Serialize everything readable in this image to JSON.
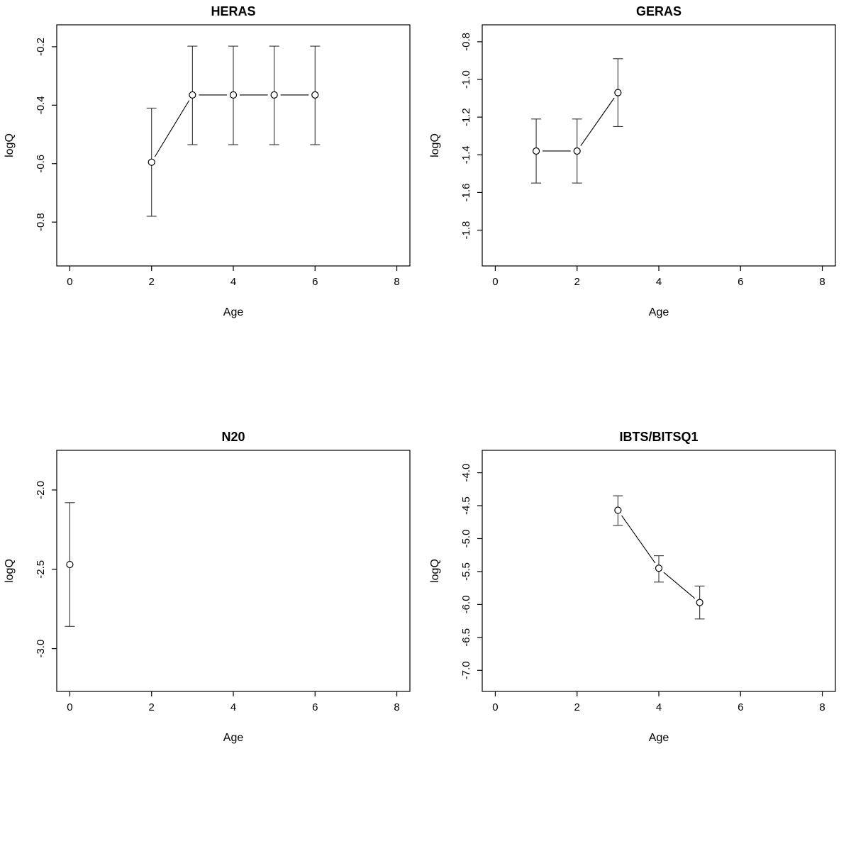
{
  "page": {
    "background": "#ffffff",
    "axis_color": "#000000",
    "point_color": "#000000",
    "errorbar_color": "#333333"
  },
  "chart_data": [
    {
      "type": "scatter",
      "title": "HERAS",
      "xlabel": "Age",
      "ylabel": "logQ",
      "xlim": [
        -0.32,
        8.32
      ],
      "ylim": [
        -0.95,
        -0.125
      ],
      "xticks": [
        0,
        2,
        4,
        6,
        8
      ],
      "xtick_labels": [
        "0",
        "2",
        "4",
        "6",
        "8"
      ],
      "yticks": [
        -0.8,
        -0.6,
        -0.4,
        -0.2
      ],
      "ytick_labels": [
        "-0.8",
        "-0.6",
        "-0.4",
        "-0.2"
      ],
      "connect": true,
      "points": [
        {
          "x": 2,
          "y": -0.595,
          "lo": -0.78,
          "hi": -0.41
        },
        {
          "x": 3,
          "y": -0.365,
          "lo": -0.535,
          "hi": -0.198
        },
        {
          "x": 4,
          "y": -0.365,
          "lo": -0.535,
          "hi": -0.198
        },
        {
          "x": 5,
          "y": -0.365,
          "lo": -0.535,
          "hi": -0.198
        },
        {
          "x": 6,
          "y": -0.365,
          "lo": -0.535,
          "hi": -0.198
        }
      ]
    },
    {
      "type": "scatter",
      "title": "GERAS",
      "xlabel": "Age",
      "ylabel": "logQ",
      "xlim": [
        -0.32,
        8.32
      ],
      "ylim": [
        -1.99,
        -0.71
      ],
      "xticks": [
        0,
        2,
        4,
        6,
        8
      ],
      "xtick_labels": [
        "0",
        "2",
        "4",
        "6",
        "8"
      ],
      "yticks": [
        -1.8,
        -1.6,
        -1.4,
        -1.2,
        -1.0,
        -0.8
      ],
      "ytick_labels": [
        "-1.8",
        "-1.6",
        "-1.4",
        "-1.2",
        "-1.0",
        "-0.8"
      ],
      "connect": true,
      "points": [
        {
          "x": 1,
          "y": -1.38,
          "lo": -1.55,
          "hi": -1.21
        },
        {
          "x": 2,
          "y": -1.38,
          "lo": -1.55,
          "hi": -1.21
        },
        {
          "x": 3,
          "y": -1.07,
          "lo": -1.25,
          "hi": -0.89
        }
      ]
    },
    {
      "type": "scatter",
      "title": "N20",
      "xlabel": "Age",
      "ylabel": "logQ",
      "xlim": [
        -0.32,
        8.32
      ],
      "ylim": [
        -3.27,
        -1.75
      ],
      "xticks": [
        0,
        2,
        4,
        6,
        8
      ],
      "xtick_labels": [
        "0",
        "2",
        "4",
        "6",
        "8"
      ],
      "yticks": [
        -3.0,
        -2.5,
        -2.0
      ],
      "ytick_labels": [
        "-3.0",
        "-2.5",
        "-2.0"
      ],
      "connect": true,
      "points": [
        {
          "x": 0,
          "y": -2.47,
          "lo": -2.86,
          "hi": -2.08
        }
      ]
    },
    {
      "type": "scatter",
      "title": "IBTS/BITSQ1",
      "xlabel": "Age",
      "ylabel": "logQ",
      "xlim": [
        -0.32,
        8.32
      ],
      "ylim": [
        -7.32,
        -3.66
      ],
      "xticks": [
        0,
        2,
        4,
        6,
        8
      ],
      "xtick_labels": [
        "0",
        "2",
        "4",
        "6",
        "8"
      ],
      "yticks": [
        -7.0,
        -6.5,
        -6.0,
        -5.5,
        -5.0,
        -4.5,
        -4.0
      ],
      "ytick_labels": [
        "-7.0",
        "-6.5",
        "-6.0",
        "-5.5",
        "-5.0",
        "-4.5",
        "-4.0"
      ],
      "connect": true,
      "points": [
        {
          "x": 3,
          "y": -4.57,
          "lo": -4.8,
          "hi": -4.35
        },
        {
          "x": 4,
          "y": -5.45,
          "lo": -5.66,
          "hi": -5.26
        },
        {
          "x": 5,
          "y": -5.97,
          "lo": -6.22,
          "hi": -5.72
        }
      ]
    }
  ]
}
